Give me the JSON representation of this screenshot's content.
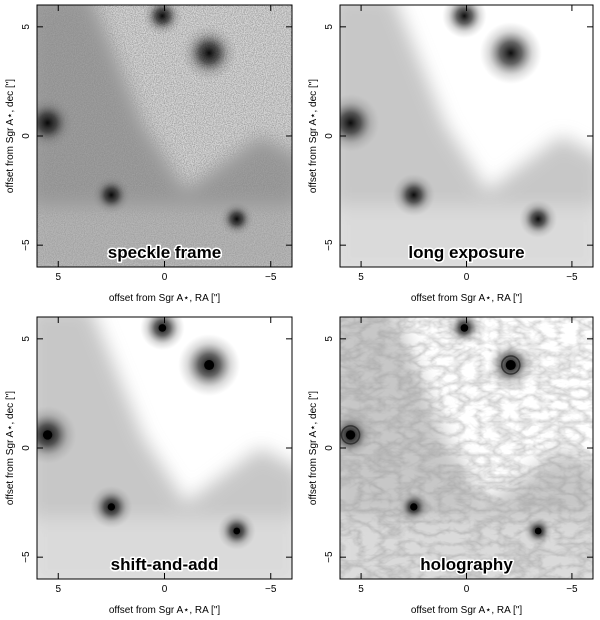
{
  "figure": {
    "panels": [
      {
        "id": "speckle",
        "caption": "speckle frame",
        "style": "speckle"
      },
      {
        "id": "long",
        "caption": "long exposure",
        "style": "long"
      },
      {
        "id": "saa",
        "caption": "shift-and-add",
        "style": "saa"
      },
      {
        "id": "holo",
        "caption": "holography",
        "style": "holo"
      }
    ],
    "xlabel": "offset from Sgr A⋆, RA [\"]",
    "ylabel": "offset from Sgr A⋆, dec [\"]",
    "x_ticks": [
      5,
      0,
      -5
    ],
    "y_ticks": [
      5,
      0,
      -5
    ],
    "x_tick_labels": [
      "5",
      "0",
      "−5"
    ],
    "y_tick_labels": [
      "5",
      "0",
      "−5"
    ],
    "xlim": [
      6.0,
      -6.0
    ],
    "ylim": [
      -6.0,
      6.0
    ],
    "sources": [
      {
        "name": "bright-star",
        "ra": -2.1,
        "dec": 3.8,
        "strength": 1.0
      },
      {
        "name": "left-star",
        "ra": 5.5,
        "dec": 0.6,
        "strength": 0.9
      },
      {
        "name": "top-star",
        "ra": 0.1,
        "dec": 5.5,
        "strength": 0.6
      },
      {
        "name": "middle-star",
        "ra": 2.5,
        "dec": -2.7,
        "strength": 0.55
      },
      {
        "name": "lower-right-star",
        "ra": -3.4,
        "dec": -3.8,
        "strength": 0.45
      }
    ]
  }
}
